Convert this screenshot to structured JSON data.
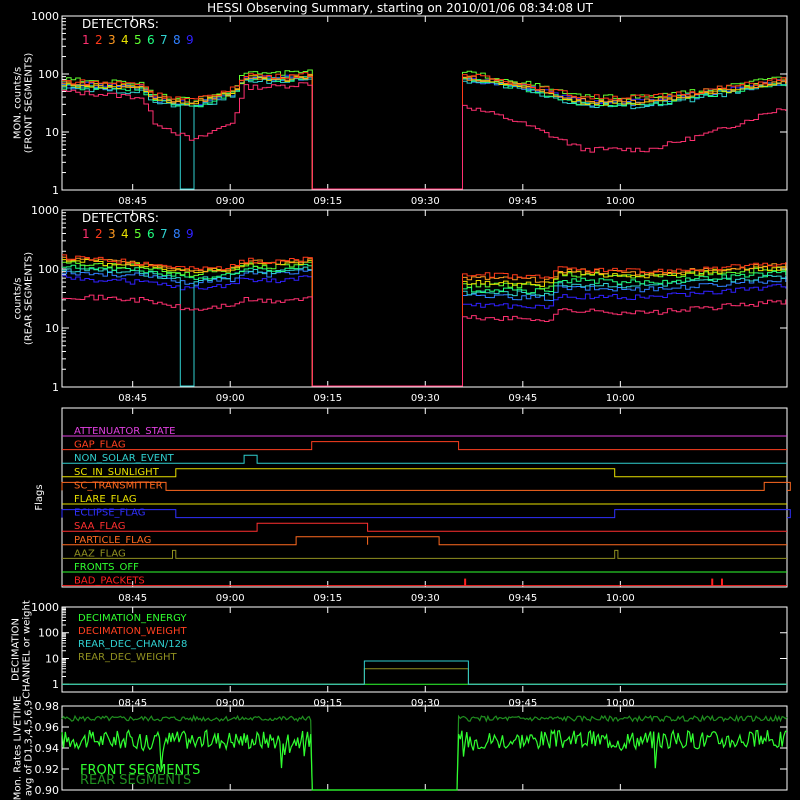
{
  "title": "HESSI Observing Summary, starting on 2010/01/06 08:34:08 UT",
  "time_ticks": [
    "08:45",
    "09:00",
    "09:15",
    "09:30",
    "09:45",
    "10:00"
  ],
  "time_tick_minutes": [
    10.87,
    25.87,
    40.87,
    55.87,
    70.87,
    85.87
  ],
  "colors": {
    "background": "#000000",
    "axes": "#ffffff",
    "det": [
      "#ff3070",
      "#ff3a1a",
      "#ff9a20",
      "#e8e000",
      "#60ff30",
      "#20ff80",
      "#30d0d0",
      "#3080ff",
      "#3020ff"
    ]
  },
  "chart_data": [
    {
      "type": "line",
      "panel": "front",
      "ylabel": "MON. counts/s\n(FRONT SEGMENTS)",
      "legend_title": "DETECTORS:",
      "legend_numbers": [
        "1",
        "2",
        "3",
        "4",
        "5",
        "6",
        "7",
        "8",
        "9"
      ],
      "yscale": "log",
      "ylim": [
        1,
        1000
      ],
      "yticks": [
        "1",
        "10",
        "100",
        "1000"
      ],
      "gap_minutes": [
        38.4,
        61.0
      ],
      "anchor_minutes": [
        0,
        12,
        14,
        20,
        26,
        28,
        32,
        38,
        61,
        70,
        80,
        90,
        100,
        110
      ],
      "series": [
        {
          "values": [
            120,
            110,
            80,
            60,
            90,
            150,
            140,
            150,
            150,
            110,
            60,
            60,
            80,
            120
          ]
        },
        {
          "values": [
            75,
            68,
            45,
            35,
            55,
            100,
            90,
            100,
            100,
            70,
            40,
            40,
            55,
            80
          ]
        },
        {
          "values": [
            70,
            62,
            40,
            32,
            50,
            90,
            85,
            90,
            90,
            65,
            35,
            35,
            50,
            75
          ]
        },
        {
          "values": [
            65,
            60,
            38,
            30,
            48,
            88,
            80,
            88,
            88,
            62,
            32,
            32,
            48,
            72
          ]
        },
        {
          "values": [
            80,
            70,
            45,
            34,
            55,
            110,
            100,
            110,
            110,
            75,
            40,
            40,
            55,
            85
          ]
        },
        {
          "values": [
            60,
            55,
            35,
            28,
            45,
            85,
            78,
            85,
            85,
            60,
            30,
            30,
            45,
            70
          ]
        },
        {
          "values": [
            55,
            50,
            32,
            26,
            42,
            80,
            75,
            80,
            80,
            58,
            28,
            28,
            42,
            65
          ]
        },
        {
          "values": [
            62,
            56,
            36,
            29,
            46,
            85,
            80,
            85,
            85,
            60,
            31,
            31,
            46,
            70
          ]
        },
        {
          "values": [
            68,
            60,
            38,
            30,
            48,
            90,
            85,
            90,
            90,
            64,
            34,
            34,
            50,
            74
          ]
        }
      ],
      "det1_values": [
        50,
        40,
        15,
        7,
        15,
        60,
        60,
        70,
        30,
        15,
        5,
        5,
        10,
        25
      ],
      "dropout_minutes": [
        17.5,
        19.8
      ]
    },
    {
      "type": "line",
      "panel": "rear",
      "ylabel": "counts/s\n(REAR SEGMENTS)",
      "legend_title": "DETECTORS:",
      "legend_numbers": [
        "1",
        "2",
        "3",
        "4",
        "5",
        "6",
        "7",
        "8",
        "9"
      ],
      "yscale": "log",
      "ylim": [
        1,
        1000
      ],
      "yticks": [
        "1",
        "10",
        "100",
        "1000"
      ],
      "gap_minutes": [
        38.4,
        61.0
      ],
      "anchor_minutes": [
        0,
        12,
        20,
        26,
        28,
        32,
        38,
        61,
        75,
        76,
        90,
        110
      ],
      "series": [
        {
          "values": [
            200,
            160,
            120,
            130,
            170,
            160,
            180,
            110,
            100,
            120,
            110,
            140
          ]
        },
        {
          "values": [
            160,
            130,
            100,
            110,
            140,
            130,
            150,
            80,
            75,
            100,
            90,
            120
          ]
        },
        {
          "values": [
            150,
            125,
            95,
            105,
            135,
            125,
            145,
            70,
            65,
            95,
            85,
            115
          ]
        },
        {
          "values": [
            140,
            115,
            88,
            100,
            130,
            118,
            138,
            60,
            55,
            85,
            78,
            105
          ]
        },
        {
          "values": [
            130,
            110,
            80,
            95,
            120,
            110,
            130,
            55,
            50,
            80,
            75,
            100
          ]
        },
        {
          "values": [
            110,
            95,
            70,
            80,
            105,
            95,
            115,
            45,
            42,
            65,
            60,
            85
          ]
        },
        {
          "values": [
            100,
            85,
            65,
            75,
            95,
            88,
            105,
            40,
            38,
            55,
            52,
            75
          ]
        },
        {
          "values": [
            90,
            78,
            58,
            68,
            88,
            80,
            98,
            35,
            32,
            48,
            45,
            65
          ]
        },
        {
          "values": [
            70,
            60,
            45,
            55,
            70,
            62,
            78,
            25,
            22,
            35,
            33,
            50
          ]
        }
      ],
      "det1_values": [
        35,
        30,
        20,
        25,
        30,
        28,
        32,
        15,
        14,
        20,
        18,
        28
      ],
      "dropout_minutes": [
        17.5,
        19.8
      ]
    },
    {
      "type": "flags",
      "ylabel": "Flags",
      "flags": [
        {
          "label": "ATTENUATOR_STATE",
          "color": "#e040e0",
          "segments": []
        },
        {
          "label": "GAP_FLAG",
          "color": "#ff4020",
          "segments": [
            [
              38.4,
              61.0
            ]
          ]
        },
        {
          "label": "NON_SOLAR_EVENT",
          "color": "#30d0d0",
          "segments": [
            [
              28.0,
              30.0
            ]
          ]
        },
        {
          "label": "SC_IN_SUNLIGHT",
          "color": "#e8e000",
          "segments": [
            [
              17.5,
              85.0
            ]
          ]
        },
        {
          "label": "SC_TRANSMITTER",
          "color": "#ff6a20",
          "segments": [
            [
              0,
              16.0
            ],
            [
              108.0,
              112.0
            ]
          ]
        },
        {
          "label": "FLARE_FLAG",
          "color": "#e8e000",
          "segments": []
        },
        {
          "label": "ECLIPSE_FLAG",
          "color": "#3030ff",
          "segments": [
            [
              0,
              17.5
            ],
            [
              85.0,
              112.0
            ]
          ]
        },
        {
          "label": "SAA_FLAG",
          "color": "#ff3030",
          "segments": [
            [
              30.0,
              47.0
            ]
          ]
        },
        {
          "label": "PARTICLE_FLAG",
          "color": "#ff6a20",
          "segments": [
            [
              36.0,
              47.0
            ],
            [
              47.0,
              58.0
            ]
          ]
        },
        {
          "label": "AAZ_FLAG",
          "color": "#909020",
          "segments": [
            [
              17.0,
              17.5
            ],
            [
              85.0,
              85.5
            ]
          ]
        },
        {
          "label": "FRONTS_OFF",
          "color": "#30ff30",
          "segments": []
        },
        {
          "label": "BAD_PACKETS",
          "color": "#ff2020",
          "ticks": [
            62.0,
            100.0,
            101.5
          ]
        }
      ]
    },
    {
      "type": "line",
      "panel": "decimation",
      "ylabel": "DECIMATION\nCHANNEL or weight",
      "yscale": "log",
      "ylim": [
        0.5,
        1000
      ],
      "yticks": [
        "1",
        "10",
        "100",
        "1000"
      ],
      "series": [
        {
          "name": "DECIMATION_ENERGY",
          "color": "#30ff30"
        },
        {
          "name": "DECIMATION_WEIGHT",
          "color": "#ff4020"
        },
        {
          "name": "REAR_DEC_CHAN/128",
          "color": "#30d0d0"
        },
        {
          "name": "REAR_DEC_WEIGHT",
          "color": "#909020"
        }
      ],
      "box_minutes": [
        46.5,
        62.5
      ],
      "rear_dec_chan_level": 8,
      "rear_dec_weight_level": 4
    },
    {
      "type": "line",
      "panel": "livetime",
      "ylabel": "Mon. Rates LIVETIME\navg of D1,3,4,5,6,9",
      "ylim": [
        0.9,
        0.98
      ],
      "yticks": [
        "0.90",
        "0.92",
        "0.94",
        "0.96",
        "0.98"
      ],
      "series": [
        {
          "name": "FRONT SEGMENTS",
          "color": "#30ff30",
          "level": 0.948
        },
        {
          "name": "REAR SEGMENTS",
          "color": "#209020",
          "level": 0.968
        }
      ],
      "gap_minutes": [
        38.4,
        61.0
      ]
    }
  ]
}
